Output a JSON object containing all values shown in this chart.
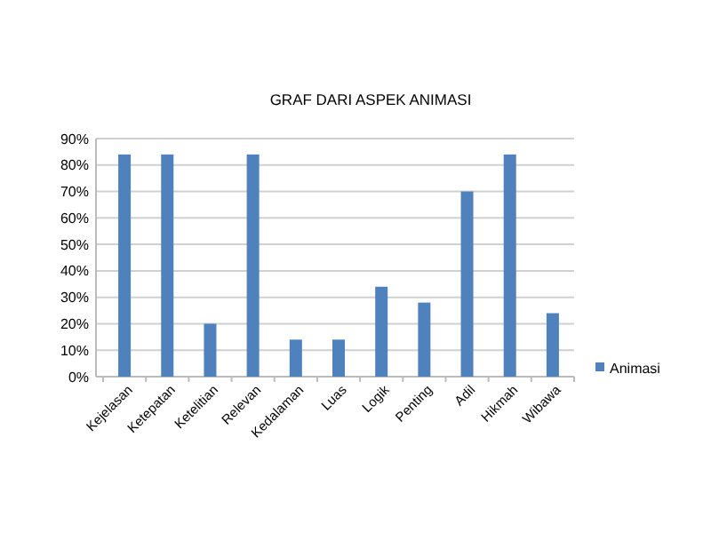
{
  "chart_data": {
    "type": "bar",
    "title": "GRAF DARI ASPEK ANIMASI",
    "categories": [
      "Kejelasan",
      "Ketepatan",
      "Ketelitian",
      "Relevan",
      "Kedalaman",
      "Luas",
      "Logik",
      "Penting",
      "Adil",
      "Hikmah",
      "Wibawa"
    ],
    "series": [
      {
        "name": "Animasi",
        "color": "#4f81bd",
        "values": [
          84,
          84,
          20,
          84,
          14,
          14,
          34,
          28,
          70,
          84,
          24
        ]
      }
    ],
    "ylim": [
      0,
      90
    ],
    "yticks": [
      {
        "value": 0,
        "label": "0%"
      },
      {
        "value": 10,
        "label": "10%"
      },
      {
        "value": 20,
        "label": "20%"
      },
      {
        "value": 30,
        "label": "30%"
      },
      {
        "value": 40,
        "label": "40%"
      },
      {
        "value": 50,
        "label": "50%"
      },
      {
        "value": 60,
        "label": "60%"
      },
      {
        "value": 70,
        "label": "70%"
      },
      {
        "value": 80,
        "label": "80%"
      },
      {
        "value": 90,
        "label": "90%"
      }
    ],
    "grid": "y",
    "legend": "right"
  }
}
